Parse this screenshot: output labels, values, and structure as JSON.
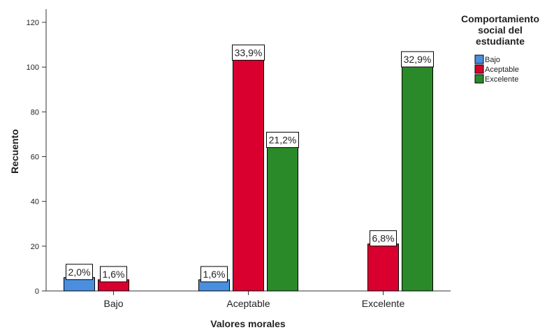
{
  "chart_data": {
    "type": "bar",
    "xlabel": "Valores morales",
    "ylabel": "Recuento",
    "ylim": [
      0,
      120
    ],
    "yticks": [
      0,
      20,
      40,
      60,
      80,
      100,
      120
    ],
    "categories": [
      "Bajo",
      "Aceptable",
      "Excelente"
    ],
    "legend_title": "Comportamiento social del estudiante",
    "legend_placement": "top-right",
    "grid": false,
    "series": [
      {
        "name": "Bajo",
        "color": "#4a8fdf",
        "values": [
          6,
          5,
          null
        ],
        "labels": [
          "2,0%",
          "1,6%",
          null
        ]
      },
      {
        "name": "Aceptable",
        "color": "#d9002f",
        "values": [
          5,
          104,
          21
        ],
        "labels": [
          "1,6%",
          "33,9%",
          "6,8%"
        ]
      },
      {
        "name": "Excelente",
        "color": "#2a8a2a",
        "values": [
          null,
          65,
          101
        ],
        "labels": [
          null,
          "21,2%",
          "32,9%"
        ]
      }
    ]
  }
}
